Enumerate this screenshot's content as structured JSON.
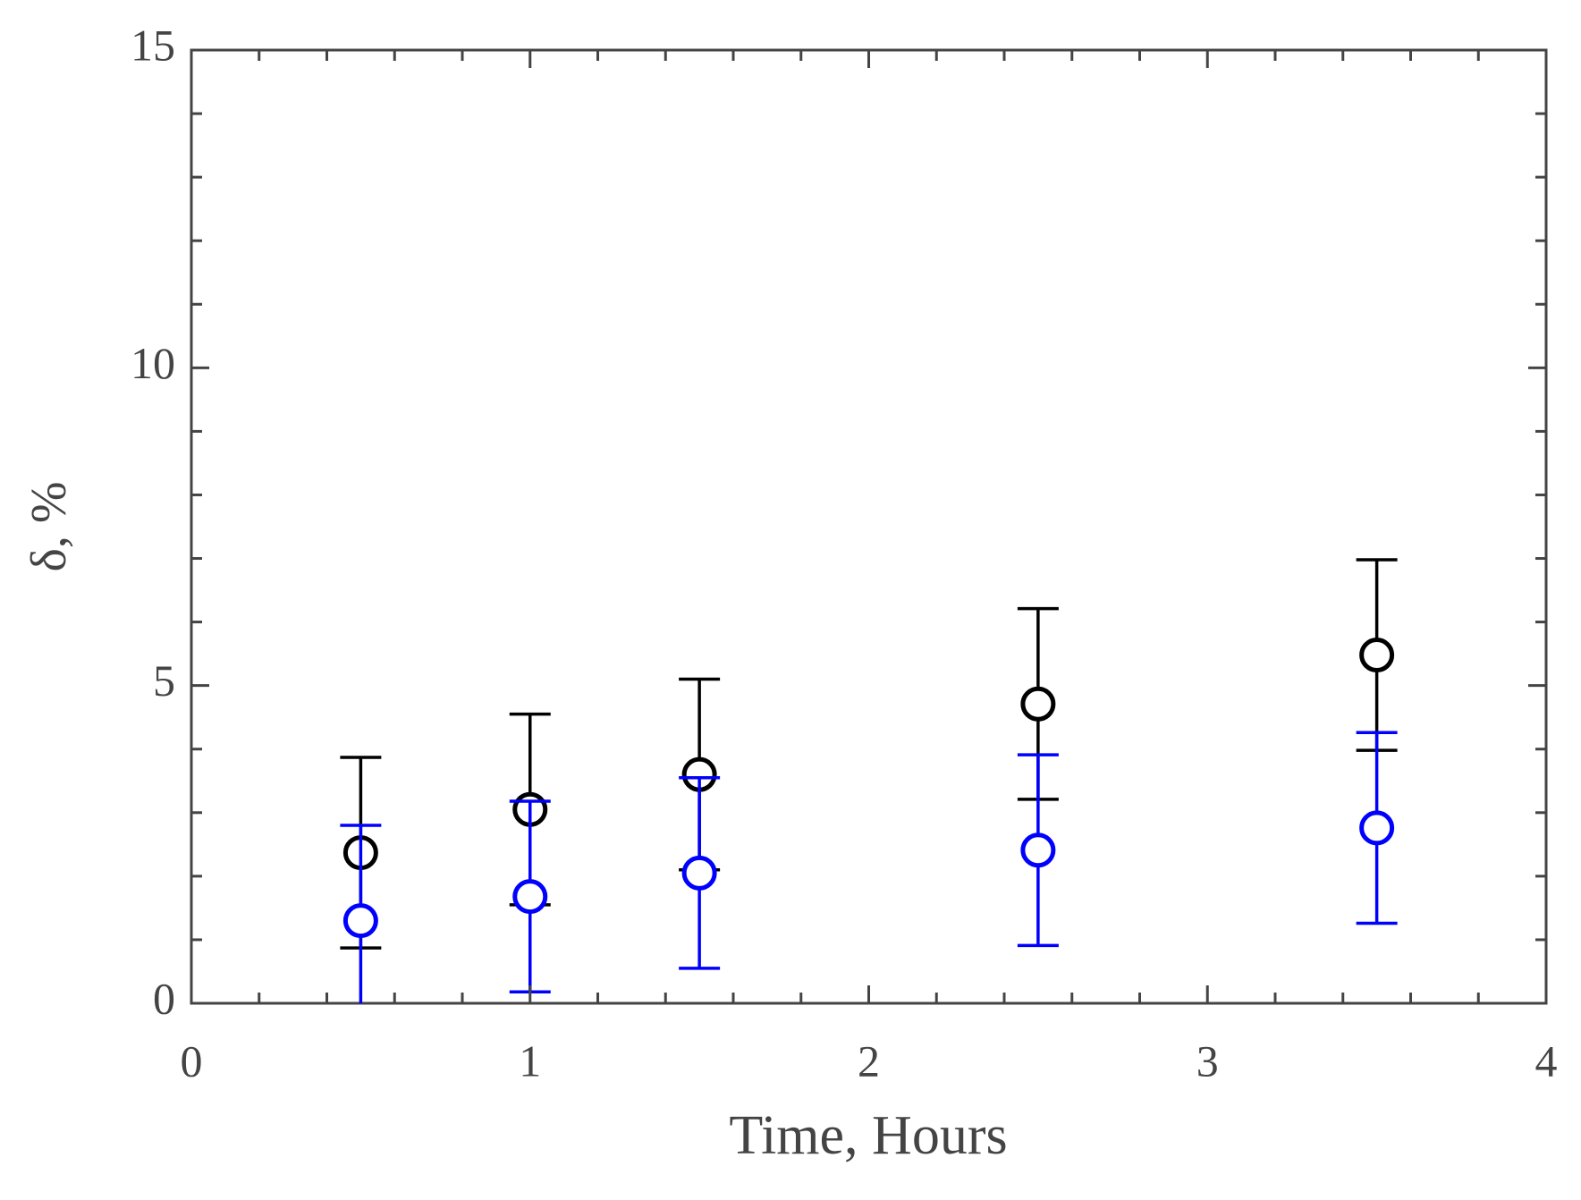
{
  "chart_data": {
    "type": "scatter",
    "xlabel": "Time, Hours",
    "ylabel": "δ, %",
    "xlim": [
      0,
      4
    ],
    "ylim": [
      0,
      15
    ],
    "xticks": [
      0,
      1,
      2,
      3,
      4
    ],
    "yticks": [
      0,
      5,
      10,
      15
    ],
    "xminorticks": [
      0.2,
      0.4,
      0.6,
      0.8,
      1.2,
      1.4,
      1.6,
      1.8,
      2.2,
      2.4,
      2.6,
      2.8,
      3.2,
      3.4,
      3.6,
      3.8
    ],
    "yminorticks": [
      1,
      2,
      3,
      4,
      6,
      7,
      8,
      9,
      11,
      12,
      13,
      14
    ],
    "series": [
      {
        "color": "#000000",
        "x": [
          0.5,
          1,
          1.5,
          2.5,
          3.5
        ],
        "values": [
          2.37,
          3.05,
          3.6,
          4.71,
          5.48
        ],
        "errors": [
          1.5,
          1.5,
          1.5,
          1.5,
          1.5
        ]
      },
      {
        "color": "#0000ff",
        "x": [
          0.5,
          1,
          1.5,
          2.5,
          3.5
        ],
        "values": [
          1.3,
          1.68,
          2.05,
          2.41,
          2.76
        ],
        "errors": [
          1.5,
          1.5,
          1.5,
          1.5,
          1.5
        ]
      }
    ]
  }
}
